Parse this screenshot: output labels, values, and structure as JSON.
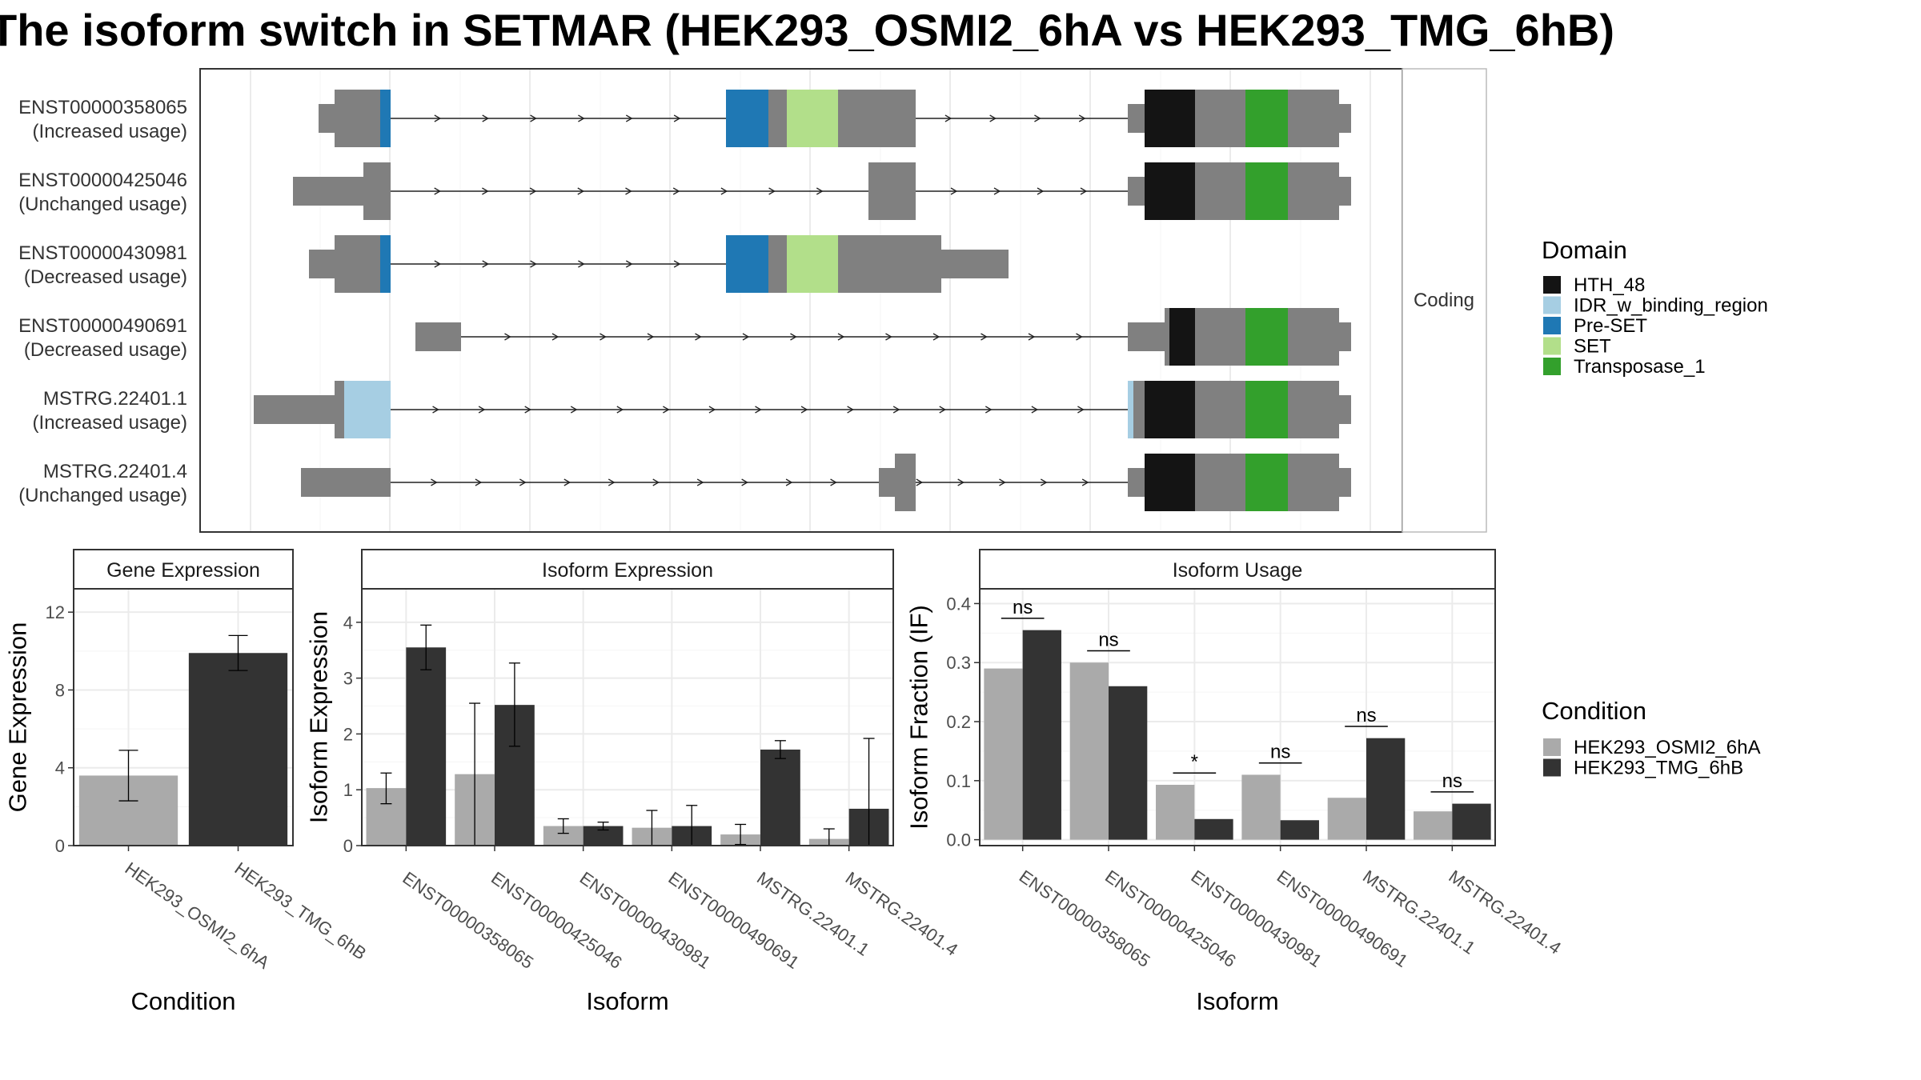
{
  "title": "The isoform switch in SETMAR (HEK293_OSMI2_6hA vs HEK293_TMG_6hB)",
  "colors": {
    "exon": "#808080",
    "domain": {
      "HTH_48": "#141414",
      "IDR_w_binding_region": "#a6cee3",
      "Pre-SET": "#1f78b4",
      "SET": "#b2df8a",
      "Transposase_1": "#33a02c"
    },
    "condition": {
      "HEK293_OSMI2_6hA": "#aaaaaa",
      "HEK293_TMG_6hB": "#333333"
    }
  },
  "transcript_panel": {
    "strip": "Coding",
    "isoforms": [
      {
        "id": "ENST00000358065",
        "usage": "(Increased usage)"
      },
      {
        "id": "ENST00000425046",
        "usage": "(Unchanged usage)"
      },
      {
        "id": "ENST00000430981",
        "usage": "(Decreased usage)"
      },
      {
        "id": "ENST00000490691",
        "usage": "(Decreased usage)"
      },
      {
        "id": "MSTRG.22401.1",
        "usage": "(Increased usage)"
      },
      {
        "id": "MSTRG.22401.4",
        "usage": "(Unchanged usage)"
      }
    ]
  },
  "legend_domain": {
    "title": "Domain",
    "items": [
      "HTH_48",
      "IDR_w_binding_region",
      "Pre-SET",
      "SET",
      "Transposase_1"
    ]
  },
  "legend_condition": {
    "title": "Condition",
    "items": [
      "HEK293_OSMI2_6hA",
      "HEK293_TMG_6hB"
    ]
  },
  "chart_data": [
    {
      "type": "bar",
      "title": "Gene Expression",
      "xlabel": "Condition",
      "ylabel": "Gene Expression",
      "ylim": [
        0,
        13.2
      ],
      "yticks": [
        0,
        4,
        8,
        12
      ],
      "categories": [
        "HEK293_OSMI2_6hA",
        "HEK293_TMG_6hB"
      ],
      "values": [
        3.6,
        9.9
      ],
      "error_low": [
        2.3,
        9.0
      ],
      "error_high": [
        4.9,
        10.8
      ]
    },
    {
      "type": "bar",
      "title": "Isoform Expression",
      "xlabel": "Isoform",
      "ylabel": "Isoform Expression",
      "ylim": [
        0,
        4.6
      ],
      "yticks": [
        0,
        1,
        2,
        3,
        4
      ],
      "categories": [
        "ENST00000358065",
        "ENST00000425046",
        "ENST00000430981",
        "ENST00000490691",
        "MSTRG.22401.1",
        "MSTRG.22401.4"
      ],
      "series": [
        {
          "name": "HEK293_OSMI2_6hA",
          "values": [
            1.03,
            1.28,
            0.35,
            0.32,
            0.2,
            0.12
          ],
          "error_low": [
            0.75,
            0.0,
            0.22,
            0.0,
            0.02,
            0.0
          ],
          "error_high": [
            1.3,
            2.55,
            0.48,
            0.63,
            0.38,
            0.3
          ]
        },
        {
          "name": "HEK293_TMG_6hB",
          "values": [
            3.55,
            2.52,
            0.35,
            0.35,
            1.72,
            0.66
          ],
          "error_low": [
            3.15,
            1.78,
            0.28,
            0.0,
            1.56,
            0.0
          ],
          "error_high": [
            3.95,
            3.27,
            0.42,
            0.72,
            1.88,
            1.92
          ]
        }
      ]
    },
    {
      "type": "bar",
      "title": "Isoform Usage",
      "xlabel": "Isoform",
      "ylabel": "Isoform Fraction (IF)",
      "ylim": [
        -0.01,
        0.425
      ],
      "yticks": [
        0.0,
        0.1,
        0.2,
        0.3,
        0.4
      ],
      "ytick_labels": [
        "0.0",
        "0.1",
        "0.2",
        "0.3",
        "0.4"
      ],
      "categories": [
        "ENST00000358065",
        "ENST00000425046",
        "ENST00000430981",
        "ENST00000490691",
        "MSTRG.22401.1",
        "MSTRG.22401.4"
      ],
      "series": [
        {
          "name": "HEK293_OSMI2_6hA",
          "values": [
            0.29,
            0.3,
            0.093,
            0.11,
            0.071,
            0.048
          ]
        },
        {
          "name": "HEK293_TMG_6hB",
          "values": [
            0.355,
            0.26,
            0.035,
            0.033,
            0.172,
            0.061
          ]
        }
      ],
      "significance": [
        "ns",
        "ns",
        "*",
        "ns",
        "ns",
        "ns"
      ]
    }
  ]
}
